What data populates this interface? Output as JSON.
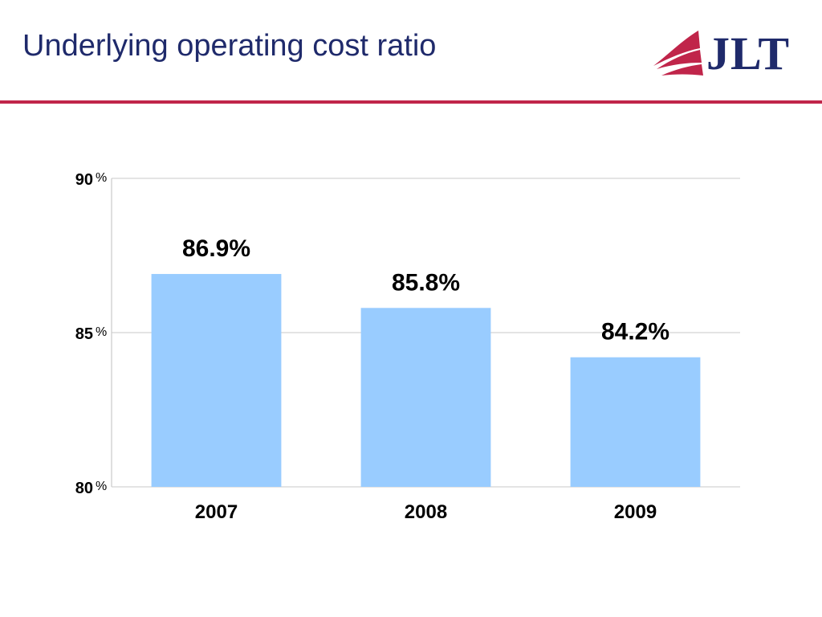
{
  "slide": {
    "title": "Underlying operating cost ratio",
    "accent_color": "#c0254a",
    "title_color": "#1f2a6b"
  },
  "logo": {
    "text": "JLT",
    "icon": "jlt-sail-icon"
  },
  "chart_data": {
    "type": "bar",
    "categories": [
      "2007",
      "2008",
      "2009"
    ],
    "values": [
      86.9,
      85.8,
      84.2
    ],
    "data_labels": [
      "86.9%",
      "85.8%",
      "84.2%"
    ],
    "ylim": [
      80,
      90
    ],
    "yticks": [
      {
        "value": 90,
        "label": "90",
        "unit": "%"
      },
      {
        "value": 85,
        "label": "85",
        "unit": "%"
      },
      {
        "value": 80,
        "label": "80",
        "unit": "%"
      }
    ],
    "grid": true,
    "legend": "none",
    "bar_color": "#99ccff",
    "title": "",
    "xlabel": "",
    "ylabel": ""
  }
}
